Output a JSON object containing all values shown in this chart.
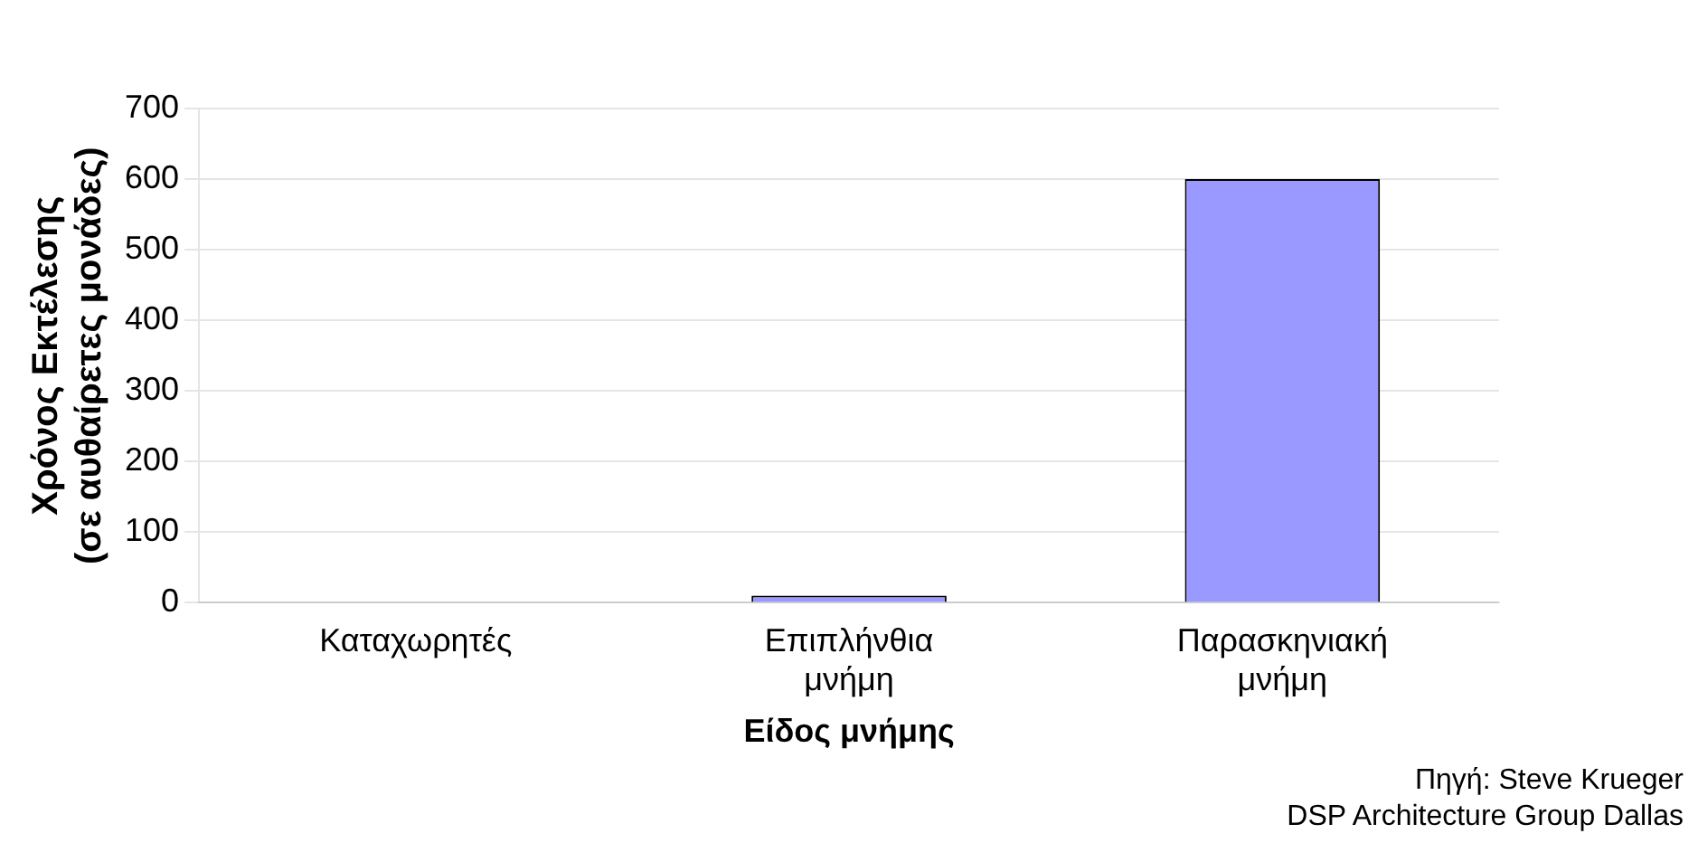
{
  "chart_data": {
    "type": "bar",
    "xlabel": "Είδος μνήμης",
    "ylabel": "Χρόνος Εκτέλεσης\n(σε αυθαίρετες μονάδες)",
    "categories": [
      "Καταχωρητές",
      "Επιπλήνθια μνήμη",
      "Παρασκηνιακή μνήμη"
    ],
    "values": [
      0,
      10,
      600
    ],
    "color": "#9999ff",
    "ylim": [
      0,
      700
    ],
    "yticks": [
      0,
      100,
      200,
      300,
      400,
      500,
      600,
      700
    ],
    "grid": "y",
    "annotations": [
      "Πηγή: Steve Krueger",
      "DSP Architecture Group Dallas"
    ]
  }
}
